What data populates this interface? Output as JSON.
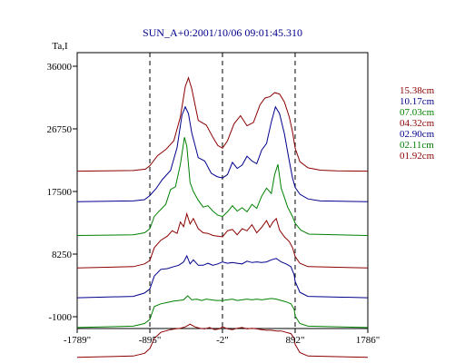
{
  "chart_data": {
    "type": "line",
    "title": "SUN_A+0:2001/10/06 09:01:45.310",
    "ylabel": "Ta,I",
    "xlabel": "",
    "x_tick_labels": [
      "-1789\"",
      "-895\"",
      "-2\"",
      "892\"",
      "1786\""
    ],
    "x_ticks": [
      -1789,
      -895,
      -2,
      892,
      1786
    ],
    "xlim": [
      -1789,
      1786
    ],
    "y_tick_labels": [
      "36000",
      "26750",
      "17500",
      "8250",
      "-1000"
    ],
    "y_ticks": [
      36000,
      26750,
      17500,
      8250,
      -1000
    ],
    "ylim": [
      -1000,
      36000
    ],
    "vertical_dashed_lines": [
      -895,
      -2,
      892
    ],
    "grid": false,
    "legend_position": "right",
    "series": [
      {
        "name": "15.38cm",
        "color": "#8b0000",
        "offset": 20500,
        "peak": 14000,
        "x": [
          -1789,
          -1100,
          -950,
          -895,
          -800,
          -700,
          -600,
          -520,
          -460,
          -420,
          -380,
          -300,
          -200,
          -120,
          -60,
          -2,
          60,
          140,
          220,
          300,
          380,
          460,
          520,
          580,
          640,
          700,
          760,
          820,
          860,
          892,
          950,
          1050,
          1200,
          1400,
          1786
        ],
        "y": [
          0,
          100,
          300,
          800,
          2300,
          3200,
          4500,
          8000,
          12500,
          13800,
          12200,
          7500,
          6800,
          5000,
          3800,
          3400,
          4500,
          7000,
          8200,
          6700,
          7200,
          9800,
          10800,
          11000,
          11600,
          11400,
          10200,
          8000,
          5800,
          3400,
          1400,
          500,
          150,
          50,
          0
        ]
      },
      {
        "name": "10.17cm",
        "color": "#00008b",
        "offset": 16000,
        "peak": 14000,
        "x": [
          -1789,
          -1100,
          -960,
          -895,
          -820,
          -740,
          -640,
          -560,
          -500,
          -460,
          -420,
          -380,
          -300,
          -220,
          -140,
          -70,
          -2,
          60,
          120,
          180,
          240,
          300,
          360,
          420,
          480,
          540,
          600,
          650,
          700,
          760,
          820,
          860,
          892,
          950,
          1050,
          1200,
          1786
        ],
        "y": [
          0,
          100,
          300,
          900,
          1900,
          3300,
          4600,
          8000,
          12800,
          14000,
          13000,
          10200,
          6500,
          6000,
          4200,
          3700,
          3500,
          4000,
          5800,
          4900,
          5400,
          6700,
          6000,
          5600,
          7600,
          8600,
          11800,
          14000,
          13000,
          10000,
          6000,
          3500,
          2100,
          1100,
          400,
          100,
          0
        ]
      },
      {
        "name": "07.03cm",
        "color": "#008000",
        "offset": 11000,
        "peak": 14000,
        "x": [
          -1789,
          -1100,
          -960,
          -895,
          -840,
          -780,
          -700,
          -640,
          -580,
          -520,
          -470,
          -440,
          -400,
          -360,
          -300,
          -240,
          -180,
          -120,
          -60,
          -2,
          60,
          120,
          180,
          240,
          300,
          360,
          420,
          480,
          540,
          600,
          640,
          680,
          720,
          760,
          800,
          860,
          892,
          960,
          1060,
          1786
        ],
        "y": [
          0,
          100,
          400,
          1000,
          2800,
          3600,
          4600,
          6800,
          7200,
          10500,
          14500,
          13200,
          7800,
          6500,
          5200,
          4200,
          4400,
          3600,
          3000,
          2800,
          3500,
          4400,
          3600,
          4100,
          3500,
          4600,
          4000,
          5800,
          7000,
          6200,
          9000,
          10500,
          7000,
          5600,
          4200,
          2800,
          1800,
          800,
          200,
          0
        ]
      },
      {
        "name": "04.32cm",
        "color": "#8b0000",
        "offset": 6200,
        "peak": 14000,
        "x": [
          -1789,
          -1100,
          -960,
          -895,
          -840,
          -760,
          -680,
          -620,
          -560,
          -520,
          -480,
          -440,
          -400,
          -360,
          -300,
          -240,
          -180,
          -120,
          -60,
          -2,
          60,
          120,
          180,
          240,
          300,
          360,
          420,
          480,
          540,
          580,
          620,
          660,
          700,
          760,
          820,
          860,
          892,
          950,
          1050,
          1786
        ],
        "y": [
          0,
          200,
          600,
          1100,
          3000,
          4100,
          4700,
          5500,
          5100,
          6800,
          6100,
          8000,
          6500,
          7300,
          5800,
          5200,
          5100,
          4800,
          4700,
          4600,
          5500,
          5700,
          4900,
          5800,
          5500,
          6400,
          5200,
          6000,
          7000,
          6000,
          6800,
          7300,
          5600,
          4600,
          3900,
          3000,
          1700,
          700,
          200,
          0
        ]
      },
      {
        "name": "02.90cm",
        "color": "#00008b",
        "offset": 1800,
        "peak": 14000,
        "x": [
          -1789,
          -1100,
          -960,
          -895,
          -840,
          -760,
          -680,
          -600,
          -540,
          -480,
          -440,
          -400,
          -360,
          -300,
          -240,
          -180,
          -120,
          -60,
          -2,
          60,
          120,
          180,
          240,
          300,
          360,
          420,
          480,
          540,
          600,
          660,
          720,
          780,
          840,
          880,
          892,
          950,
          1050,
          1786
        ],
        "y": [
          0,
          200,
          700,
          1300,
          3200,
          4200,
          4300,
          4600,
          4800,
          5300,
          6200,
          5000,
          5600,
          4800,
          4800,
          5100,
          4800,
          5000,
          5300,
          5100,
          5200,
          5100,
          5000,
          5400,
          5200,
          5300,
          5200,
          5300,
          5600,
          5800,
          5300,
          5000,
          4600,
          3400,
          2400,
          800,
          200,
          0
        ]
      },
      {
        "name": "02.11cm",
        "color": "#008000",
        "offset": -2600,
        "peak": 14000,
        "x": [
          -1789,
          -1100,
          -960,
          -895,
          -840,
          -760,
          -680,
          -600,
          -540,
          -480,
          -430,
          -380,
          -320,
          -260,
          -200,
          -140,
          -80,
          -2,
          60,
          120,
          180,
          240,
          300,
          360,
          420,
          480,
          540,
          600,
          660,
          720,
          780,
          840,
          880,
          892,
          950,
          1050,
          1786
        ],
        "y": [
          0,
          200,
          600,
          1200,
          3100,
          3500,
          3700,
          3900,
          4000,
          4100,
          4700,
          4100,
          4200,
          4000,
          4200,
          4100,
          4000,
          4000,
          4100,
          4200,
          4000,
          4100,
          4200,
          4100,
          4200,
          4100,
          4200,
          4300,
          4200,
          4000,
          3800,
          3500,
          2700,
          1700,
          600,
          200,
          0
        ]
      },
      {
        "name": "01.92cm",
        "color": "#8b0000",
        "offset": -7000,
        "peak": 14000,
        "x": [
          -1789,
          -1100,
          -960,
          -895,
          -840,
          -760,
          -700,
          -640,
          -580,
          -520,
          -460,
          -400,
          -340,
          -280,
          -220,
          -160,
          -100,
          -40,
          -2,
          60,
          120,
          180,
          240,
          300,
          360,
          420,
          480,
          540,
          600,
          660,
          720,
          780,
          840,
          880,
          892,
          950,
          1050,
          1786
        ],
        "y": [
          0,
          200,
          600,
          1300,
          2800,
          3700,
          3900,
          4100,
          4200,
          4300,
          4500,
          4900,
          4500,
          4300,
          4200,
          4400,
          4100,
          4200,
          4500,
          4200,
          4100,
          4300,
          4400,
          4200,
          4300,
          4200,
          4100,
          4000,
          4000,
          3900,
          3900,
          3700,
          3500,
          2800,
          1900,
          700,
          200,
          0
        ]
      }
    ]
  }
}
